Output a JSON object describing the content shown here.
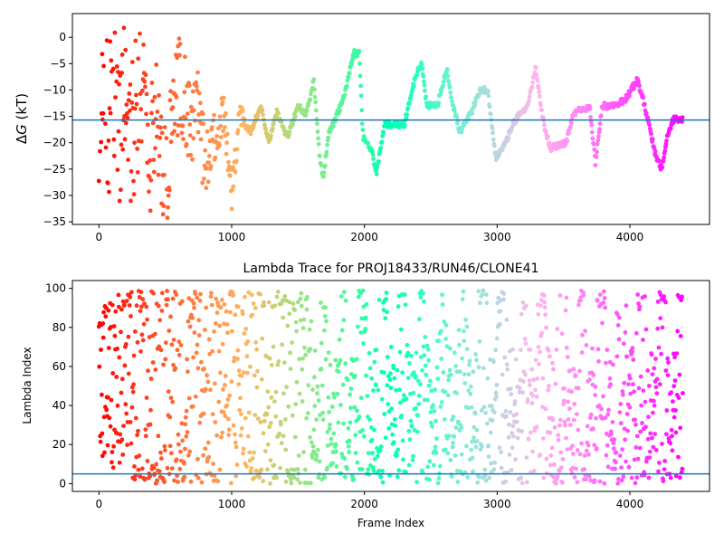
{
  "chart_data": [
    {
      "type": "scatter",
      "title": "",
      "xlabel": "",
      "ylabel": "ΔG (kT)",
      "ylabel_italic_part": "G",
      "xlim": [
        -200,
        4600
      ],
      "ylim": [
        -35.5,
        4.5
      ],
      "xticks": [
        0,
        1000,
        2000,
        3000,
        4000
      ],
      "yticks": [
        0,
        -5,
        -10,
        -15,
        -20,
        -25,
        -30,
        -35
      ],
      "hline": -15.7,
      "hline_color": "#1f77b4",
      "colormap": "rainbow (red at frame 0 → violet at last frame)",
      "n_frames": 4400,
      "trace_keypoints": [
        [
          0,
          -10
        ],
        [
          40,
          -8
        ],
        [
          80,
          -12
        ],
        [
          120,
          -6
        ],
        [
          160,
          -16
        ],
        [
          200,
          -10
        ],
        [
          260,
          -20
        ],
        [
          320,
          -5
        ],
        [
          380,
          -25
        ],
        [
          440,
          -12
        ],
        [
          500,
          -30
        ],
        [
          560,
          -15
        ],
        [
          620,
          -8
        ],
        [
          680,
          -18
        ],
        [
          740,
          -12
        ],
        [
          800,
          -25
        ],
        [
          860,
          -20
        ],
        [
          940,
          -14
        ],
        [
          1000,
          -30
        ],
        [
          1060,
          -15
        ],
        [
          1140,
          -18
        ],
        [
          1220,
          -13
        ],
        [
          1280,
          -20
        ],
        [
          1340,
          -14
        ],
        [
          1420,
          -19
        ],
        [
          1500,
          -13
        ],
        [
          1560,
          -15
        ],
        [
          1620,
          -8
        ],
        [
          1660,
          -22
        ],
        [
          1690,
          -27
        ],
        [
          1730,
          -18
        ],
        [
          1790,
          -15
        ],
        [
          1850,
          -11
        ],
        [
          1920,
          -3
        ],
        [
          1960,
          -3
        ],
        [
          1990,
          -19
        ],
        [
          2060,
          -22
        ],
        [
          2090,
          -26
        ],
        [
          2150,
          -16.5
        ],
        [
          2300,
          -16.5
        ],
        [
          2340,
          -12
        ],
        [
          2390,
          -7
        ],
        [
          2430,
          -5
        ],
        [
          2470,
          -13
        ],
        [
          2550,
          -13
        ],
        [
          2620,
          -6
        ],
        [
          2660,
          -12
        ],
        [
          2720,
          -18
        ],
        [
          2810,
          -14
        ],
        [
          2870,
          -10
        ],
        [
          2930,
          -10
        ],
        [
          2990,
          -23
        ],
        [
          3060,
          -20
        ],
        [
          3150,
          -15
        ],
        [
          3230,
          -13
        ],
        [
          3290,
          -6
        ],
        [
          3340,
          -15
        ],
        [
          3400,
          -21
        ],
        [
          3520,
          -20
        ],
        [
          3570,
          -15
        ],
        [
          3620,
          -13.5
        ],
        [
          3700,
          -13.5
        ],
        [
          3740,
          -24
        ],
        [
          3790,
          -13
        ],
        [
          3870,
          -13
        ],
        [
          3960,
          -12
        ],
        [
          4060,
          -8
        ],
        [
          4140,
          -16
        ],
        [
          4200,
          -23
        ],
        [
          4240,
          -25
        ],
        [
          4280,
          -19
        ],
        [
          4330,
          -15.5
        ],
        [
          4400,
          -15.5
        ]
      ]
    },
    {
      "type": "scatter",
      "title": "Lambda Trace for PROJ18433/RUN46/CLONE41",
      "xlabel": "Frame Index",
      "ylabel": "Lambda Index",
      "xlim": [
        -200,
        4600
      ],
      "ylim": [
        -4,
        104
      ],
      "xticks": [
        0,
        1000,
        2000,
        3000,
        4000
      ],
      "yticks": [
        0,
        20,
        40,
        60,
        80,
        100
      ],
      "hline": 5,
      "hline_color": "#1f77b4",
      "colormap": "rainbow (red at frame 0 → violet at last frame)",
      "n_frames": 4400,
      "lambda_range": [
        0,
        99
      ]
    }
  ]
}
